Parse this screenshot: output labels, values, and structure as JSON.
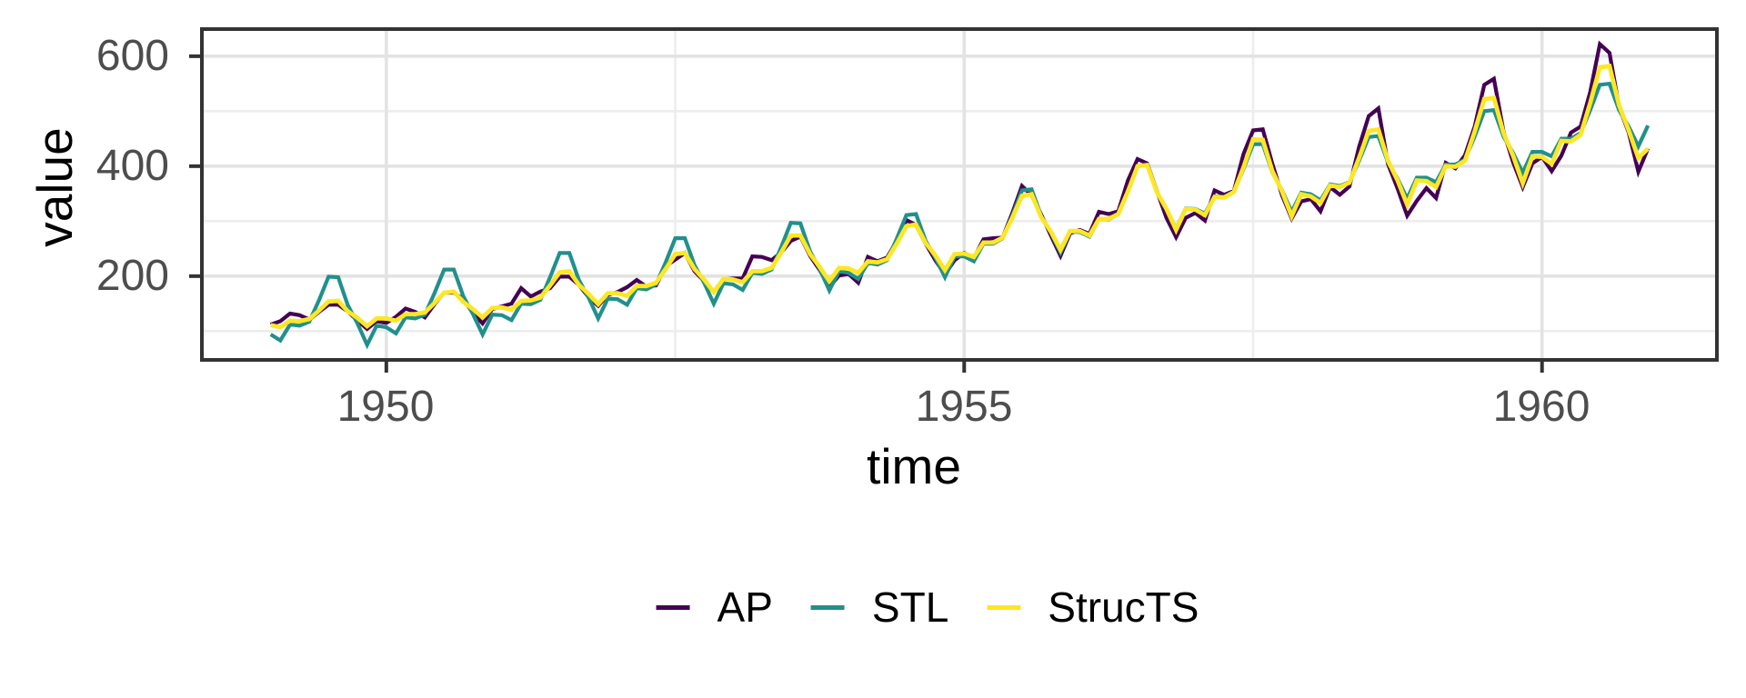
{
  "chart_data": {
    "type": "line",
    "title": "",
    "xlabel": "time",
    "ylabel": "value",
    "grid": true,
    "legend_position": "bottom",
    "x_start": 1949,
    "frequency": 12,
    "xlim": [
      1948.404,
      1961.513
    ],
    "ylim": [
      47.65,
      649.35
    ],
    "x_ticks": [
      {
        "value": 1950,
        "label": "1950"
      },
      {
        "value": 1955,
        "label": "1955"
      },
      {
        "value": 1960,
        "label": "1960"
      }
    ],
    "y_ticks": [
      {
        "value": 600,
        "label": "600"
      },
      {
        "value": 400,
        "label": "400"
      },
      {
        "value": 200,
        "label": "200"
      }
    ],
    "x_minor_ticks": [
      1952.5,
      1957.5
    ],
    "y_minor_ticks": [
      100,
      300,
      500
    ],
    "colors": {
      "panel_border": "#333333",
      "grid_major": "#e3e3e3",
      "grid_minor": "#ededed",
      "tick_mark": "#333333",
      "tick_text": "#4d4d4d"
    },
    "series": [
      {
        "name": "AP",
        "color": "#440154",
        "values": [
          112,
          118,
          132,
          129,
          121,
          135,
          148,
          148,
          136,
          119,
          104,
          118,
          115,
          126,
          141,
          135,
          125,
          149,
          170,
          170,
          158,
          133,
          114,
          140,
          145,
          150,
          178,
          163,
          172,
          178,
          199,
          199,
          184,
          162,
          146,
          166,
          171,
          180,
          193,
          181,
          183,
          218,
          230,
          242,
          209,
          191,
          172,
          194,
          196,
          196,
          236,
          235,
          229,
          243,
          264,
          272,
          237,
          211,
          180,
          201,
          204,
          188,
          235,
          227,
          234,
          264,
          302,
          293,
          259,
          229,
          203,
          229,
          242,
          233,
          267,
          269,
          270,
          315,
          364,
          347,
          312,
          274,
          237,
          278,
          284,
          277,
          317,
          313,
          318,
          374,
          413,
          405,
          355,
          306,
          271,
          306,
          315,
          301,
          356,
          348,
          355,
          422,
          465,
          467,
          404,
          347,
          305,
          336,
          340,
          318,
          362,
          348,
          363,
          435,
          491,
          505,
          404,
          359,
          310,
          337,
          360,
          342,
          406,
          396,
          420,
          472,
          548,
          559,
          463,
          407,
          362,
          405,
          417,
          391,
          419,
          461,
          472,
          535,
          622,
          606,
          508,
          461,
          390,
          432
        ]
      },
      {
        "name": "STL",
        "color": "#21908C",
        "values": [
          94,
          83,
          112,
          110,
          117,
          156,
          199,
          198,
          147,
          114,
          75,
          110,
          107,
          96,
          125,
          123,
          130,
          169,
          212,
          212,
          163,
          131,
          94,
          130,
          129,
          120,
          150,
          149,
          157,
          198,
          242,
          242,
          193,
          161,
          123,
          159,
          158,
          148,
          178,
          176,
          185,
          225,
          269,
          269,
          220,
          188,
          150,
          187,
          185,
          175,
          206,
          204,
          212,
          253,
          297,
          296,
          245,
          213,
          174,
          209,
          206,
          195,
          224,
          221,
          229,
          268,
          311,
          313,
          264,
          234,
          198,
          236,
          236,
          227,
          259,
          259,
          269,
          310,
          356,
          358,
          309,
          279,
          243,
          281,
          280,
          272,
          304,
          303,
          313,
          355,
          400,
          402,
          353,
          322,
          286,
          323,
          322,
          314,
          345,
          344,
          354,
          395,
          440,
          440,
          389,
          356,
          317,
          352,
          349,
          338,
          367,
          364,
          371,
          410,
          453,
          455,
          407,
          377,
          341,
          379,
          379,
          371,
          403,
          403,
          412,
          454,
          500,
          502,
          454,
          424,
          388,
          426,
          426,
          418,
          450,
          450,
          460,
          502,
          548,
          550,
          502,
          472,
          436,
          474
        ]
      },
      {
        "name": "StrucTS",
        "color": "#FDE725",
        "values": [
          111,
          107,
          119,
          118,
          122,
          137,
          154,
          155,
          136,
          124,
          109,
          123,
          123,
          119,
          131,
          131,
          134,
          151,
          170,
          172,
          153,
          140,
          125,
          142,
          143,
          139,
          155,
          156,
          161,
          183,
          207,
          209,
          184,
          168,
          149,
          169,
          169,
          164,
          182,
          182,
          188,
          213,
          240,
          242,
          213,
          194,
          171,
          195,
          194,
          189,
          209,
          209,
          215,
          243,
          274,
          274,
          240,
          217,
          191,
          215,
          214,
          206,
          227,
          225,
          231,
          259,
          291,
          294,
          260,
          238,
          211,
          240,
          241,
          235,
          261,
          261,
          270,
          306,
          346,
          349,
          307,
          281,
          248,
          282,
          282,
          274,
          304,
          304,
          313,
          354,
          400,
          402,
          353,
          322,
          284,
          322,
          321,
          311,
          344,
          343,
          353,
          398,
          449,
          448,
          391,
          354,
          309,
          349,
          345,
          333,
          365,
          362,
          370,
          415,
          464,
          467,
          410,
          374,
          330,
          374,
          373,
          362,
          400,
          399,
          410,
          463,
          522,
          524,
          460,
          419,
          369,
          418,
          417,
          404,
          446,
          445,
          457,
          515,
          580,
          582,
          511,
          465,
          415,
          432
        ]
      }
    ]
  }
}
